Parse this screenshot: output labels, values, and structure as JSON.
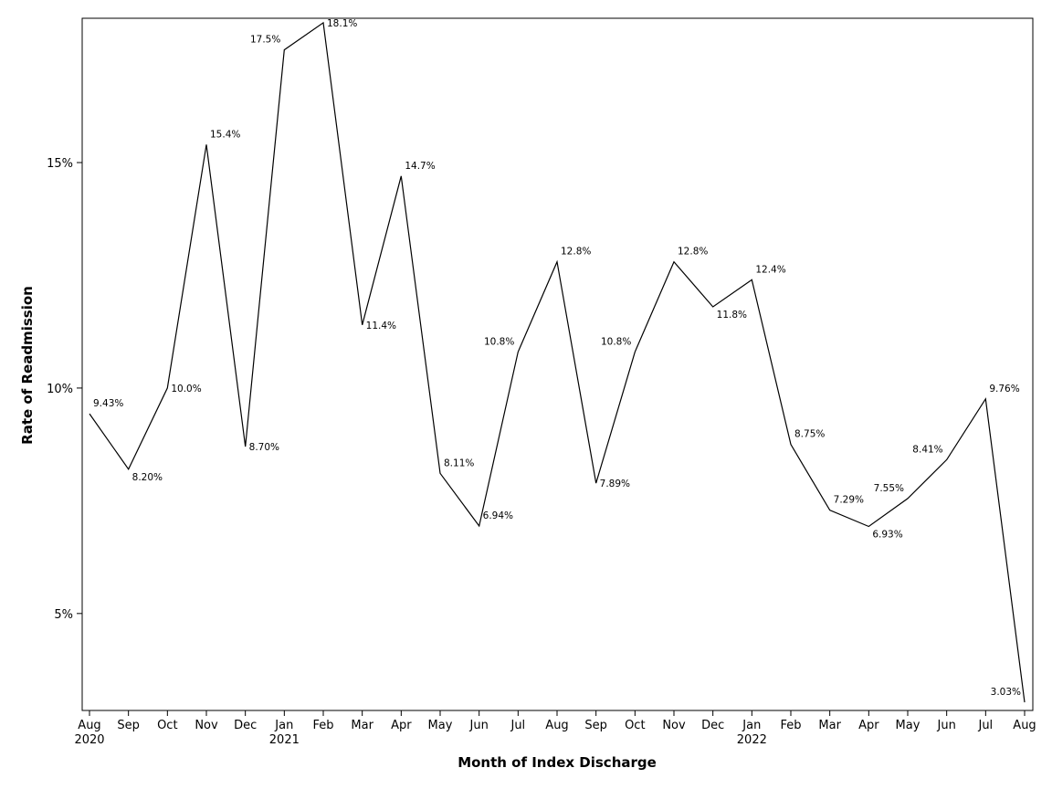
{
  "chart_data": {
    "type": "line",
    "xlabel": "Month of Index Discharge",
    "ylabel": "Rate of Readmission",
    "ylim": [
      2.85,
      18.2
    ],
    "yticks": [
      5,
      10,
      15
    ],
    "ytick_labels": [
      "5%",
      "10%",
      "15%"
    ],
    "grid": false,
    "legend": "none",
    "line_color": "#000000",
    "points": [
      {
        "month": "Aug",
        "year": "2020",
        "value": 9.43,
        "label": "9.43%",
        "pos": "above-right"
      },
      {
        "month": "Sep",
        "year": "",
        "value": 8.2,
        "label": "8.20%",
        "pos": "below-right"
      },
      {
        "month": "Oct",
        "year": "",
        "value": 10.0,
        "label": "10.0%",
        "pos": "right"
      },
      {
        "month": "Nov",
        "year": "",
        "value": 15.4,
        "label": "15.4%",
        "pos": "above-right"
      },
      {
        "month": "Dec",
        "year": "",
        "value": 8.7,
        "label": "8.70%",
        "pos": "right"
      },
      {
        "month": "Jan",
        "year": "2021",
        "value": 17.5,
        "label": "17.5%",
        "pos": "above-left"
      },
      {
        "month": "Feb",
        "year": "",
        "value": 18.1,
        "label": "18.1%",
        "pos": "right"
      },
      {
        "month": "Mar",
        "year": "",
        "value": 11.4,
        "label": "11.4%",
        "pos": "right"
      },
      {
        "month": "Apr",
        "year": "",
        "value": 14.7,
        "label": "14.7%",
        "pos": "above-right"
      },
      {
        "month": "May",
        "year": "",
        "value": 8.11,
        "label": "8.11%",
        "pos": "above-right"
      },
      {
        "month": "Jun",
        "year": "",
        "value": 6.94,
        "label": "6.94%",
        "pos": "above-right"
      },
      {
        "month": "Jul",
        "year": "",
        "value": 10.8,
        "label": "10.8%",
        "pos": "above-left"
      },
      {
        "month": "Aug",
        "year": "",
        "value": 12.8,
        "label": "12.8%",
        "pos": "above-right"
      },
      {
        "month": "Sep",
        "year": "",
        "value": 7.89,
        "label": "7.89%",
        "pos": "right"
      },
      {
        "month": "Oct",
        "year": "",
        "value": 10.8,
        "label": "10.8%",
        "pos": "above-left"
      },
      {
        "month": "Nov",
        "year": "",
        "value": 12.8,
        "label": "12.8%",
        "pos": "above-right"
      },
      {
        "month": "Dec",
        "year": "",
        "value": 11.8,
        "label": "11.8%",
        "pos": "below-right"
      },
      {
        "month": "Jan",
        "year": "2022",
        "value": 12.4,
        "label": "12.4%",
        "pos": "above-right"
      },
      {
        "month": "Feb",
        "year": "",
        "value": 8.75,
        "label": "8.75%",
        "pos": "above-right"
      },
      {
        "month": "Mar",
        "year": "",
        "value": 7.29,
        "label": "7.29%",
        "pos": "above-right"
      },
      {
        "month": "Apr",
        "year": "",
        "value": 6.93,
        "label": "6.93%",
        "pos": "below-right"
      },
      {
        "month": "May",
        "year": "",
        "value": 7.55,
        "label": "7.55%",
        "pos": "above-left"
      },
      {
        "month": "Jun",
        "year": "",
        "value": 8.41,
        "label": "8.41%",
        "pos": "above-left"
      },
      {
        "month": "Jul",
        "year": "",
        "value": 9.76,
        "label": "9.76%",
        "pos": "above-right"
      },
      {
        "month": "Aug",
        "year": "",
        "value": 3.03,
        "label": "3.03%",
        "pos": "above-left"
      }
    ]
  }
}
